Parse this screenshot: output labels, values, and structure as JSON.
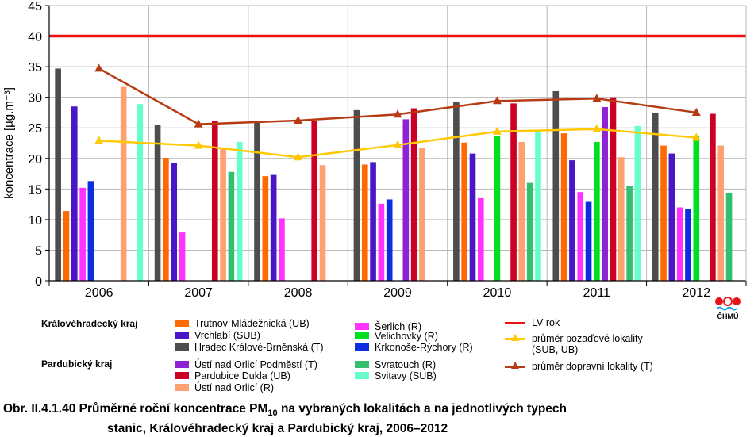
{
  "chart_data": {
    "type": "bar",
    "ylabel": "koncentrace [µg.m⁻³]",
    "ylim": [
      0,
      45
    ],
    "yticks": [
      0,
      5,
      10,
      15,
      20,
      25,
      30,
      35,
      40,
      45
    ],
    "categories": [
      "2006",
      "2007",
      "2008",
      "2009",
      "2010",
      "2011",
      "2012"
    ],
    "series": [
      {
        "name": "Hradec Králové-Brněnská (T)",
        "color": "#4d4d4d",
        "values": [
          34.7,
          25.5,
          26.2,
          27.9,
          29.3,
          31.0,
          27.5
        ]
      },
      {
        "name": "Trutnov-Mládežnická (UB)",
        "color": "#ff6a00",
        "values": [
          11.4,
          20.1,
          17.1,
          19.0,
          22.6,
          24.1,
          22.1
        ]
      },
      {
        "name": "Vrchlabí (SUB)",
        "color": "#4a17c8",
        "values": [
          28.5,
          19.3,
          17.3,
          19.4,
          20.8,
          19.7,
          20.8
        ]
      },
      {
        "name": "Šerlich (R)",
        "color": "#ff33ff",
        "values": [
          15.2,
          7.9,
          10.2,
          12.6,
          13.5,
          14.5,
          12.0
        ]
      },
      {
        "name": "Krkonoše-Rýchory (R)",
        "color": "#0a2ee0",
        "values": [
          16.3,
          null,
          null,
          13.3,
          null,
          12.9,
          11.8
        ]
      },
      {
        "name": "Velichovky (R)",
        "color": "#00e020",
        "values": [
          null,
          null,
          null,
          null,
          23.7,
          22.7,
          23.6
        ]
      },
      {
        "name": "Ústí nad Orlicí Podměstí (T)",
        "color": "#8e22d4",
        "values": [
          null,
          null,
          null,
          26.4,
          null,
          28.4,
          null
        ]
      },
      {
        "name": "Pardubice Dukla (UB)",
        "color": "#cc0025",
        "values": [
          null,
          26.2,
          26.2,
          28.2,
          29.0,
          30.0,
          27.3
        ]
      },
      {
        "name": "Ústí nad Orlicí (R)",
        "color": "#ffa070",
        "values": [
          31.7,
          21.5,
          18.9,
          21.7,
          22.7,
          20.2,
          22.1
        ]
      },
      {
        "name": "Svratouch (R)",
        "color": "#33bf6f",
        "values": [
          null,
          17.8,
          null,
          null,
          16.0,
          15.5,
          14.4
        ]
      },
      {
        "name": "Svitavy (SUB)",
        "color": "#66ffcc",
        "values": [
          28.9,
          22.7,
          null,
          null,
          24.7,
          25.3,
          null
        ]
      }
    ],
    "lines": [
      {
        "name": "LV rok",
        "color": "#ee1111",
        "values": [
          40,
          40,
          40,
          40,
          40,
          40,
          40
        ]
      },
      {
        "name": "průměr pozaďové lokality (SUB, UB)",
        "color": "#ffc800",
        "marker": "triangle",
        "values": [
          22.9,
          22.1,
          20.2,
          22.2,
          24.4,
          24.8,
          23.4
        ]
      },
      {
        "name": "průměr dopravní lokality (T)",
        "color": "#b83a12",
        "marker": "triangle",
        "values": [
          34.7,
          25.6,
          26.2,
          27.2,
          29.4,
          29.8,
          27.5
        ]
      }
    ]
  },
  "legend": {
    "group1": "Královéhradecký kraj",
    "group2": "Pardubický kraj",
    "items": [
      {
        "label": "Trutnov-Mládežnická (UB)",
        "color": "#ff6a00"
      },
      {
        "label": "Vrchlabí (SUB)",
        "color": "#4a17c8"
      },
      {
        "label": "Hradec Králové-Brněnská (T)",
        "color": "#4d4d4d"
      },
      {
        "label": "Ústí nad Orlicí Podměstí (T)",
        "color": "#8e22d4"
      },
      {
        "label": "Pardubice Dukla (UB)",
        "color": "#cc0025"
      },
      {
        "label": "Ústí nad Orlicí (R)",
        "color": "#ffa070"
      },
      {
        "label": "Šerlich (R)",
        "color": "#ff33ff"
      },
      {
        "label": "Velichovky (R)",
        "color": "#00e020"
      },
      {
        "label": "Krkonoše-Rýchory (R)",
        "color": "#0a2ee0"
      },
      {
        "label": "Svratouch (R)",
        "color": "#33bf6f"
      },
      {
        "label": "Svitavy (SUB)",
        "color": "#66ffcc"
      },
      {
        "label": "LV rok",
        "color": "#ee1111"
      },
      {
        "label": "průměr pozaďové lokality",
        "color": "#ffc800"
      },
      {
        "label": "(SUB, UB)"
      },
      {
        "label": "průměr dopravní lokality (T)",
        "color": "#b83a12"
      }
    ]
  },
  "caption": {
    "prefix": "Obr. II.4.1.40  Průměrné roční koncentrace PM",
    "subscript": "10",
    "line1_rest": " na vybraných lokalitách a na jednotlivých typech",
    "line2": "stanic, Královéhradecký kraj a Pardubický kraj, 2006–2012"
  },
  "logo": {
    "text": "ČHMÚ"
  }
}
